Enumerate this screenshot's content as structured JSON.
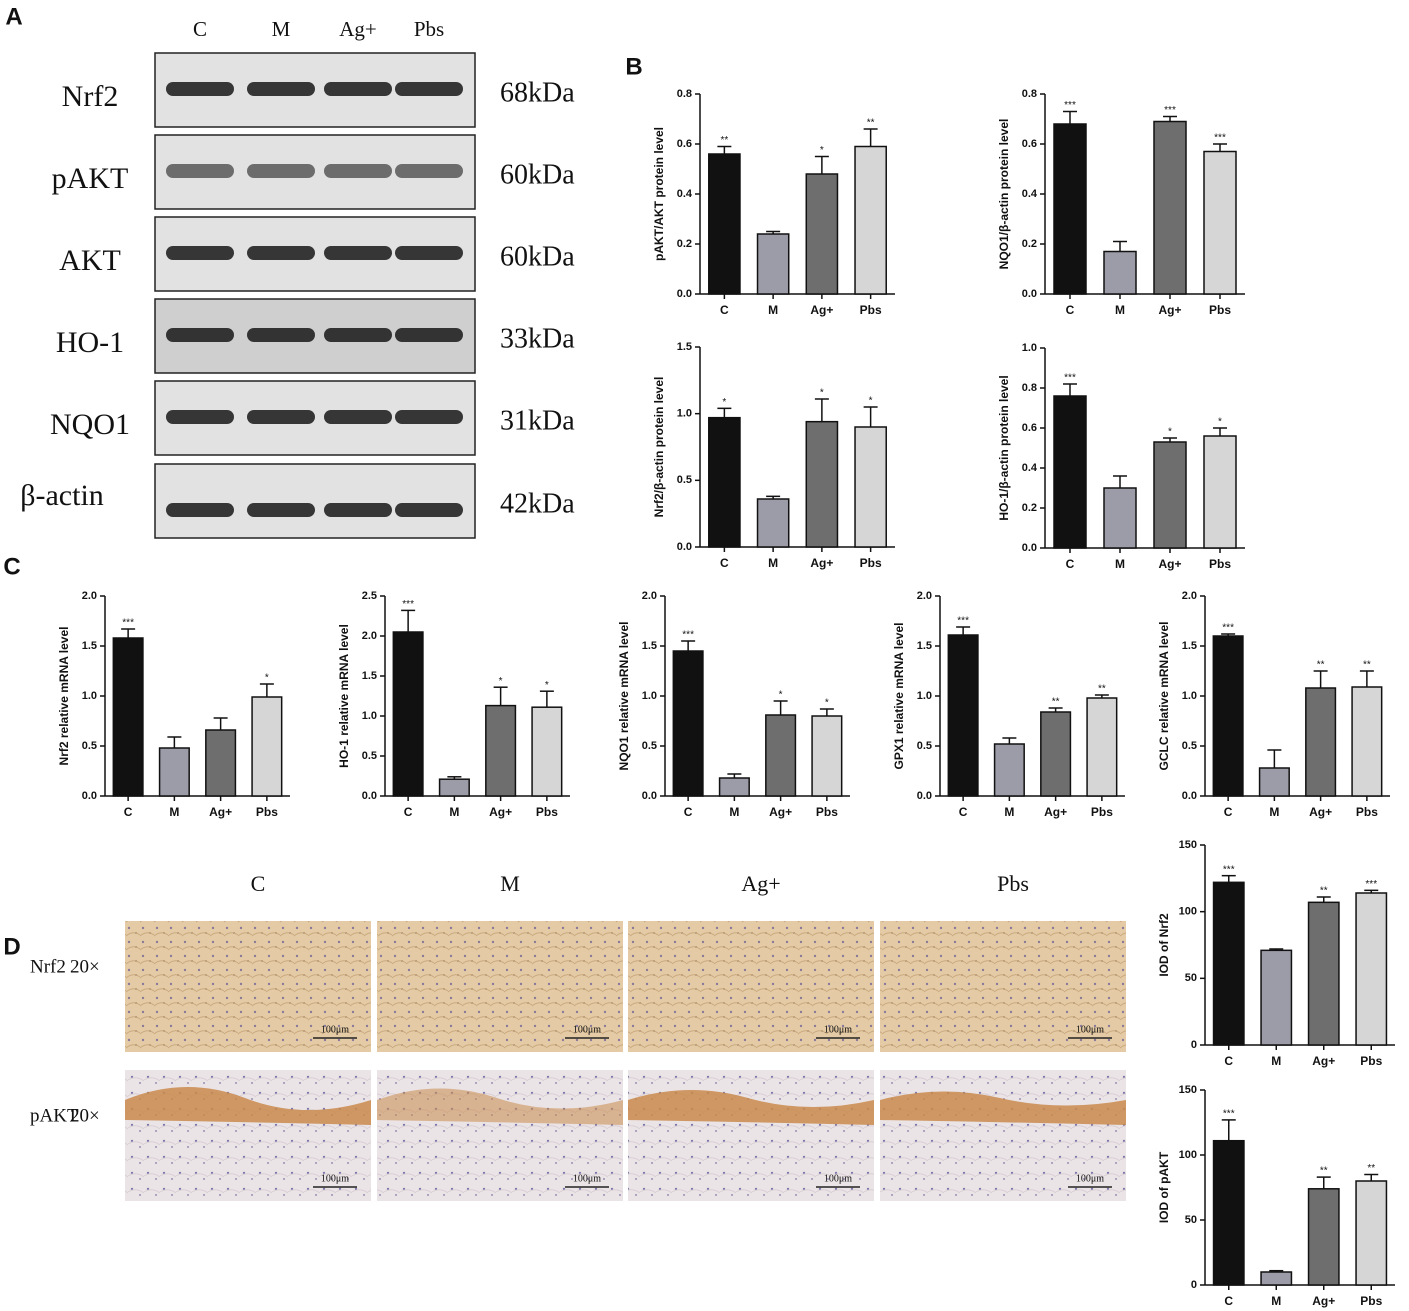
{
  "panel_labels": [
    "A",
    "B",
    "C",
    "D"
  ],
  "blot": {
    "lanes": [
      "C",
      "M",
      "Ag+",
      "Pbs"
    ],
    "proteins": [
      "Nrf2",
      "pAKT",
      "AKT",
      "HO-1",
      "NQO1",
      "β-actin"
    ],
    "sizes": [
      "68kDa",
      "60kDa",
      "60kDa",
      "33kDa",
      "31kDa",
      "42kDa"
    ]
  },
  "histology": {
    "groups": [
      "C",
      "M",
      "Ag+",
      "Pbs"
    ],
    "rows": [
      {
        "target": "Nrf2",
        "magnification": "20×"
      },
      {
        "target": "pAKT",
        "magnification": "20×"
      }
    ],
    "scale_bar": "100μm"
  },
  "chart_data": [
    {
      "type": "bar",
      "ylabel": "pAKT/AKT protein level",
      "categories": [
        "C",
        "M",
        "Ag+",
        "Pbs"
      ],
      "values": [
        0.56,
        0.24,
        0.48,
        0.59
      ],
      "errors": [
        0.03,
        0.01,
        0.07,
        0.07
      ],
      "annotations": [
        "**",
        null,
        "*",
        "**"
      ],
      "colors": [
        "#111111",
        "#9c9ca8",
        "#6e6e6e",
        "#d6d6d6"
      ],
      "ylim": [
        0,
        0.8
      ],
      "yticks": [
        {
          "value": 0,
          "label": "0.0"
        },
        0.2,
        0.4,
        0.6,
        0.8
      ]
    },
    {
      "type": "bar",
      "ylabel": "NQO1/β-actin protein level",
      "categories": [
        "C",
        "M",
        "Ag+",
        "Pbs"
      ],
      "values": [
        0.68,
        0.17,
        0.69,
        0.57
      ],
      "errors": [
        0.05,
        0.04,
        0.02,
        0.03
      ],
      "annotations": [
        "***",
        null,
        "***",
        "***"
      ],
      "colors": [
        "#111111",
        "#9c9ca8",
        "#6e6e6e",
        "#d6d6d6"
      ],
      "ylim": [
        0,
        0.8
      ],
      "yticks": [
        {
          "value": 0,
          "label": "0.0"
        },
        0.2,
        0.4,
        0.6,
        0.8
      ]
    },
    {
      "type": "bar",
      "ylabel": "Nrf2/β-actin protein level",
      "categories": [
        "C",
        "M",
        "Ag+",
        "Pbs"
      ],
      "values": [
        0.97,
        0.36,
        0.94,
        0.9
      ],
      "errors": [
        0.07,
        0.02,
        0.17,
        0.15
      ],
      "annotations": [
        "*",
        null,
        "*",
        "*"
      ],
      "colors": [
        "#111111",
        "#9c9ca8",
        "#6e6e6e",
        "#d6d6d6"
      ],
      "ylim": [
        0,
        1.5
      ],
      "yticks": [
        {
          "value": 0,
          "label": "0.0"
        },
        0.5,
        {
          "value": 1,
          "label": "1.0"
        },
        1.5
      ]
    },
    {
      "type": "bar",
      "ylabel": "HO-1/β-actin protein level",
      "categories": [
        "C",
        "M",
        "Ag+",
        "Pbs"
      ],
      "values": [
        0.76,
        0.3,
        0.53,
        0.56
      ],
      "errors": [
        0.06,
        0.06,
        0.02,
        0.04
      ],
      "annotations": [
        "***",
        null,
        "*",
        "*"
      ],
      "colors": [
        "#111111",
        "#9c9ca8",
        "#6e6e6e",
        "#d6d6d6"
      ],
      "ylim": [
        0,
        1
      ],
      "yticks": [
        {
          "value": 0,
          "label": "0.0"
        },
        0.2,
        0.4,
        0.6,
        0.8,
        {
          "value": 1,
          "label": "1.0"
        }
      ]
    },
    {
      "type": "bar",
      "ylabel": "Nrf2 relative mRNA level",
      "categories": [
        "C",
        "M",
        "Ag+",
        "Pbs"
      ],
      "values": [
        1.58,
        0.48,
        0.66,
        0.99
      ],
      "errors": [
        0.09,
        0.11,
        0.12,
        0.13
      ],
      "annotations": [
        "***",
        null,
        null,
        "*"
      ],
      "colors": [
        "#111111",
        "#9c9ca8",
        "#6e6e6e",
        "#d6d6d6"
      ],
      "ylim": [
        0,
        2
      ],
      "yticks": [
        {
          "value": 0,
          "label": "0.0"
        },
        0.5,
        {
          "value": 1,
          "label": "1.0"
        },
        1.5,
        {
          "value": 2,
          "label": "2.0"
        }
      ]
    },
    {
      "type": "bar",
      "ylabel": "HO-1 relative mRNA level",
      "categories": [
        "C",
        "M",
        "Ag+",
        "Pbs"
      ],
      "values": [
        2.05,
        0.21,
        1.13,
        1.11
      ],
      "errors": [
        0.27,
        0.03,
        0.23,
        0.2
      ],
      "annotations": [
        "***",
        null,
        "*",
        "*"
      ],
      "colors": [
        "#111111",
        "#9c9ca8",
        "#6e6e6e",
        "#d6d6d6"
      ],
      "ylim": [
        0,
        2.5
      ],
      "yticks": [
        {
          "value": 0,
          "label": "0.0"
        },
        0.5,
        {
          "value": 1,
          "label": "1.0"
        },
        1.5,
        {
          "value": 2,
          "label": "2.0"
        },
        2.5
      ]
    },
    {
      "type": "bar",
      "ylabel": "NQO1 relative mRNA level",
      "categories": [
        "C",
        "M",
        "Ag+",
        "Pbs"
      ],
      "values": [
        1.45,
        0.18,
        0.81,
        0.8
      ],
      "errors": [
        0.1,
        0.04,
        0.14,
        0.07
      ],
      "annotations": [
        "***",
        null,
        "*",
        "*"
      ],
      "colors": [
        "#111111",
        "#9c9ca8",
        "#6e6e6e",
        "#d6d6d6"
      ],
      "ylim": [
        0,
        2
      ],
      "yticks": [
        {
          "value": 0,
          "label": "0.0"
        },
        0.5,
        {
          "value": 1,
          "label": "1.0"
        },
        1.5,
        {
          "value": 2,
          "label": "2.0"
        }
      ]
    },
    {
      "type": "bar",
      "ylabel": "GPX1 relative mRNA level",
      "categories": [
        "C",
        "M",
        "Ag+",
        "Pbs"
      ],
      "values": [
        1.61,
        0.52,
        0.84,
        0.98
      ],
      "errors": [
        0.08,
        0.06,
        0.04,
        0.03
      ],
      "annotations": [
        "***",
        null,
        "**",
        "**"
      ],
      "colors": [
        "#111111",
        "#9c9ca8",
        "#6e6e6e",
        "#d6d6d6"
      ],
      "ylim": [
        0,
        2
      ],
      "yticks": [
        {
          "value": 0,
          "label": "0.0"
        },
        0.5,
        {
          "value": 1,
          "label": "1.0"
        },
        1.5,
        {
          "value": 2,
          "label": "2.0"
        }
      ]
    },
    {
      "type": "bar",
      "ylabel": "GCLC relative mRNA level",
      "categories": [
        "C",
        "M",
        "Ag+",
        "Pbs"
      ],
      "values": [
        1.6,
        0.28,
        1.08,
        1.09
      ],
      "errors": [
        0.02,
        0.18,
        0.17,
        0.16
      ],
      "annotations": [
        "***",
        null,
        "**",
        "**"
      ],
      "colors": [
        "#111111",
        "#9c9ca8",
        "#6e6e6e",
        "#d6d6d6"
      ],
      "ylim": [
        0,
        2
      ],
      "yticks": [
        {
          "value": 0,
          "label": "0.0"
        },
        0.5,
        {
          "value": 1,
          "label": "1.0"
        },
        1.5,
        {
          "value": 2,
          "label": "2.0"
        }
      ]
    },
    {
      "type": "bar",
      "ylabel": "IOD of Nrf2",
      "categories": [
        "C",
        "M",
        "Ag+",
        "Pbs"
      ],
      "values": [
        122,
        71,
        107,
        114
      ],
      "errors": [
        5,
        1,
        4,
        2
      ],
      "annotations": [
        "***",
        null,
        "**",
        "***"
      ],
      "colors": [
        "#111111",
        "#9c9ca8",
        "#6e6e6e",
        "#d6d6d6"
      ],
      "ylim": [
        0,
        150
      ],
      "yticks": [
        0,
        50,
        100,
        150
      ]
    },
    {
      "type": "bar",
      "ylabel": "IOD of pAKT",
      "categories": [
        "C",
        "M",
        "Ag+",
        "Pbs"
      ],
      "values": [
        111,
        10,
        74,
        80
      ],
      "errors": [
        16,
        1,
        9,
        5
      ],
      "annotations": [
        "***",
        null,
        "**",
        "**"
      ],
      "colors": [
        "#111111",
        "#9c9ca8",
        "#6e6e6e",
        "#d6d6d6"
      ],
      "ylim": [
        0,
        150
      ],
      "yticks": [
        0,
        50,
        100,
        150
      ]
    }
  ]
}
